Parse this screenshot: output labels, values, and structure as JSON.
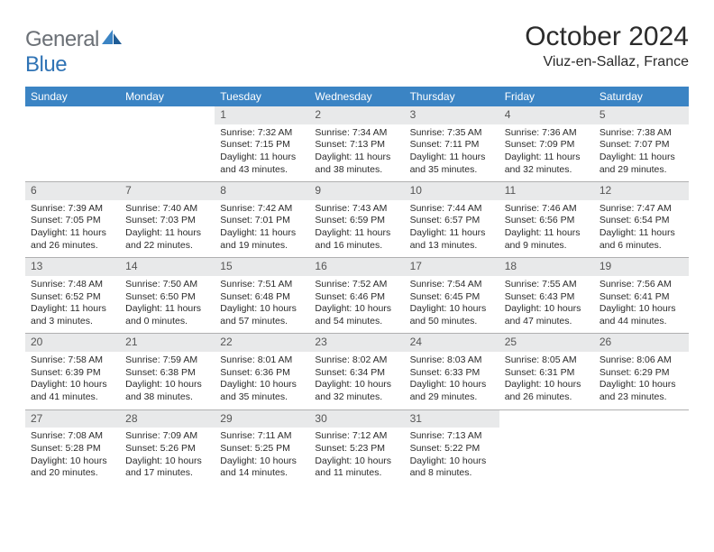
{
  "brand": {
    "part1": "General",
    "part2": "Blue"
  },
  "title": "October 2024",
  "location": "Viuz-en-Sallaz, France",
  "colors": {
    "header_bg": "#3b84c4",
    "daynum_bg": "#e8e9ea",
    "text": "#2b2b2b",
    "logo_gray": "#6b7076",
    "logo_blue": "#2f73b5",
    "rule": "#b0b0b0"
  },
  "dow": [
    "Sunday",
    "Monday",
    "Tuesday",
    "Wednesday",
    "Thursday",
    "Friday",
    "Saturday"
  ],
  "weeks": [
    [
      null,
      null,
      {
        "n": "1",
        "sr": "Sunrise: 7:32 AM",
        "ss": "Sunset: 7:15 PM",
        "dl": "Daylight: 11 hours and 43 minutes."
      },
      {
        "n": "2",
        "sr": "Sunrise: 7:34 AM",
        "ss": "Sunset: 7:13 PM",
        "dl": "Daylight: 11 hours and 38 minutes."
      },
      {
        "n": "3",
        "sr": "Sunrise: 7:35 AM",
        "ss": "Sunset: 7:11 PM",
        "dl": "Daylight: 11 hours and 35 minutes."
      },
      {
        "n": "4",
        "sr": "Sunrise: 7:36 AM",
        "ss": "Sunset: 7:09 PM",
        "dl": "Daylight: 11 hours and 32 minutes."
      },
      {
        "n": "5",
        "sr": "Sunrise: 7:38 AM",
        "ss": "Sunset: 7:07 PM",
        "dl": "Daylight: 11 hours and 29 minutes."
      }
    ],
    [
      {
        "n": "6",
        "sr": "Sunrise: 7:39 AM",
        "ss": "Sunset: 7:05 PM",
        "dl": "Daylight: 11 hours and 26 minutes."
      },
      {
        "n": "7",
        "sr": "Sunrise: 7:40 AM",
        "ss": "Sunset: 7:03 PM",
        "dl": "Daylight: 11 hours and 22 minutes."
      },
      {
        "n": "8",
        "sr": "Sunrise: 7:42 AM",
        "ss": "Sunset: 7:01 PM",
        "dl": "Daylight: 11 hours and 19 minutes."
      },
      {
        "n": "9",
        "sr": "Sunrise: 7:43 AM",
        "ss": "Sunset: 6:59 PM",
        "dl": "Daylight: 11 hours and 16 minutes."
      },
      {
        "n": "10",
        "sr": "Sunrise: 7:44 AM",
        "ss": "Sunset: 6:57 PM",
        "dl": "Daylight: 11 hours and 13 minutes."
      },
      {
        "n": "11",
        "sr": "Sunrise: 7:46 AM",
        "ss": "Sunset: 6:56 PM",
        "dl": "Daylight: 11 hours and 9 minutes."
      },
      {
        "n": "12",
        "sr": "Sunrise: 7:47 AM",
        "ss": "Sunset: 6:54 PM",
        "dl": "Daylight: 11 hours and 6 minutes."
      }
    ],
    [
      {
        "n": "13",
        "sr": "Sunrise: 7:48 AM",
        "ss": "Sunset: 6:52 PM",
        "dl": "Daylight: 11 hours and 3 minutes."
      },
      {
        "n": "14",
        "sr": "Sunrise: 7:50 AM",
        "ss": "Sunset: 6:50 PM",
        "dl": "Daylight: 11 hours and 0 minutes."
      },
      {
        "n": "15",
        "sr": "Sunrise: 7:51 AM",
        "ss": "Sunset: 6:48 PM",
        "dl": "Daylight: 10 hours and 57 minutes."
      },
      {
        "n": "16",
        "sr": "Sunrise: 7:52 AM",
        "ss": "Sunset: 6:46 PM",
        "dl": "Daylight: 10 hours and 54 minutes."
      },
      {
        "n": "17",
        "sr": "Sunrise: 7:54 AM",
        "ss": "Sunset: 6:45 PM",
        "dl": "Daylight: 10 hours and 50 minutes."
      },
      {
        "n": "18",
        "sr": "Sunrise: 7:55 AM",
        "ss": "Sunset: 6:43 PM",
        "dl": "Daylight: 10 hours and 47 minutes."
      },
      {
        "n": "19",
        "sr": "Sunrise: 7:56 AM",
        "ss": "Sunset: 6:41 PM",
        "dl": "Daylight: 10 hours and 44 minutes."
      }
    ],
    [
      {
        "n": "20",
        "sr": "Sunrise: 7:58 AM",
        "ss": "Sunset: 6:39 PM",
        "dl": "Daylight: 10 hours and 41 minutes."
      },
      {
        "n": "21",
        "sr": "Sunrise: 7:59 AM",
        "ss": "Sunset: 6:38 PM",
        "dl": "Daylight: 10 hours and 38 minutes."
      },
      {
        "n": "22",
        "sr": "Sunrise: 8:01 AM",
        "ss": "Sunset: 6:36 PM",
        "dl": "Daylight: 10 hours and 35 minutes."
      },
      {
        "n": "23",
        "sr": "Sunrise: 8:02 AM",
        "ss": "Sunset: 6:34 PM",
        "dl": "Daylight: 10 hours and 32 minutes."
      },
      {
        "n": "24",
        "sr": "Sunrise: 8:03 AM",
        "ss": "Sunset: 6:33 PM",
        "dl": "Daylight: 10 hours and 29 minutes."
      },
      {
        "n": "25",
        "sr": "Sunrise: 8:05 AM",
        "ss": "Sunset: 6:31 PM",
        "dl": "Daylight: 10 hours and 26 minutes."
      },
      {
        "n": "26",
        "sr": "Sunrise: 8:06 AM",
        "ss": "Sunset: 6:29 PM",
        "dl": "Daylight: 10 hours and 23 minutes."
      }
    ],
    [
      {
        "n": "27",
        "sr": "Sunrise: 7:08 AM",
        "ss": "Sunset: 5:28 PM",
        "dl": "Daylight: 10 hours and 20 minutes."
      },
      {
        "n": "28",
        "sr": "Sunrise: 7:09 AM",
        "ss": "Sunset: 5:26 PM",
        "dl": "Daylight: 10 hours and 17 minutes."
      },
      {
        "n": "29",
        "sr": "Sunrise: 7:11 AM",
        "ss": "Sunset: 5:25 PM",
        "dl": "Daylight: 10 hours and 14 minutes."
      },
      {
        "n": "30",
        "sr": "Sunrise: 7:12 AM",
        "ss": "Sunset: 5:23 PM",
        "dl": "Daylight: 10 hours and 11 minutes."
      },
      {
        "n": "31",
        "sr": "Sunrise: 7:13 AM",
        "ss": "Sunset: 5:22 PM",
        "dl": "Daylight: 10 hours and 8 minutes."
      },
      null,
      null
    ]
  ]
}
